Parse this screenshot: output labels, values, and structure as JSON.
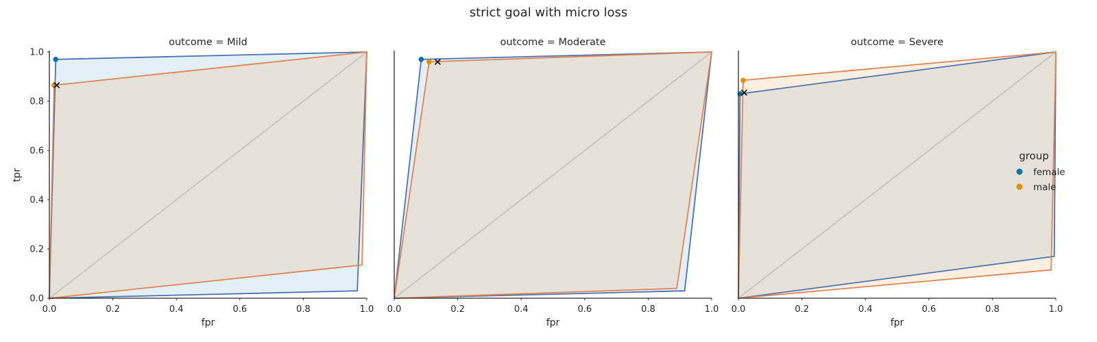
{
  "title": "strict goal with micro loss",
  "legend": {
    "title": "group",
    "placement": "right",
    "entries": [
      {
        "label": "female",
        "color": "#0173b2"
      },
      {
        "label": "male",
        "color": "#de8f05"
      }
    ]
  },
  "chart_data": [
    {
      "type": "line",
      "title": "outcome = Mild",
      "xlabel": "fpr",
      "ylabel": "tpr",
      "xlim": [
        0,
        1
      ],
      "ylim": [
        0,
        1
      ],
      "xticks": [
        "0.0",
        "0.2",
        "0.4",
        "0.6",
        "0.8",
        "1.0"
      ],
      "yticks": [
        "0.0",
        "0.2",
        "0.4",
        "0.6",
        "0.8",
        "1.0"
      ],
      "series": [
        {
          "name": "female",
          "hull": [
            [
              0,
              0
            ],
            [
              0.97,
              0.03
            ],
            [
              1,
              1
            ],
            [
              0.02,
              0.97
            ],
            [
              0,
              0
            ]
          ],
          "point": [
            0.02,
            0.97
          ]
        },
        {
          "name": "male",
          "hull": [
            [
              0,
              0
            ],
            [
              0.985,
              0.135
            ],
            [
              1,
              1
            ],
            [
              0.015,
              0.865
            ],
            [
              0,
              0
            ]
          ],
          "point": [
            0.015,
            0.865
          ]
        }
      ],
      "target": [
        0.023,
        0.865
      ]
    },
    {
      "type": "line",
      "title": "outcome = Moderate",
      "xlabel": "fpr",
      "ylabel": "",
      "xlim": [
        0,
        1
      ],
      "ylim": [
        0,
        1
      ],
      "xticks": [
        "0.0",
        "0.2",
        "0.4",
        "0.6",
        "0.8",
        "1.0"
      ],
      "yticks": [],
      "series": [
        {
          "name": "female",
          "hull": [
            [
              0,
              0
            ],
            [
              0.915,
              0.03
            ],
            [
              1,
              1
            ],
            [
              0.085,
              0.97
            ],
            [
              0,
              0
            ]
          ],
          "point": [
            0.085,
            0.97
          ]
        },
        {
          "name": "male",
          "hull": [
            [
              0,
              0
            ],
            [
              0.89,
              0.04
            ],
            [
              1,
              1
            ],
            [
              0.11,
              0.96
            ],
            [
              0,
              0
            ]
          ],
          "point": [
            0.11,
            0.96
          ]
        }
      ],
      "target": [
        0.137,
        0.96
      ]
    },
    {
      "type": "line",
      "title": "outcome = Severe",
      "xlabel": "fpr",
      "ylabel": "",
      "xlim": [
        0,
        1
      ],
      "ylim": [
        0,
        1
      ],
      "xticks": [
        "0.0",
        "0.2",
        "0.4",
        "0.6",
        "0.8",
        "1.0"
      ],
      "yticks": [],
      "series": [
        {
          "name": "female",
          "hull": [
            [
              0,
              0
            ],
            [
              0.995,
              0.17
            ],
            [
              1,
              1
            ],
            [
              0.005,
              0.83
            ],
            [
              0,
              0
            ]
          ],
          "point": [
            0.005,
            0.83
          ]
        },
        {
          "name": "male",
          "hull": [
            [
              0,
              0
            ],
            [
              0.985,
              0.115
            ],
            [
              1,
              1
            ],
            [
              0.015,
              0.885
            ],
            [
              0,
              0
            ]
          ],
          "point": [
            0.015,
            0.885
          ]
        }
      ],
      "target": [
        0.018,
        0.835
      ]
    }
  ]
}
